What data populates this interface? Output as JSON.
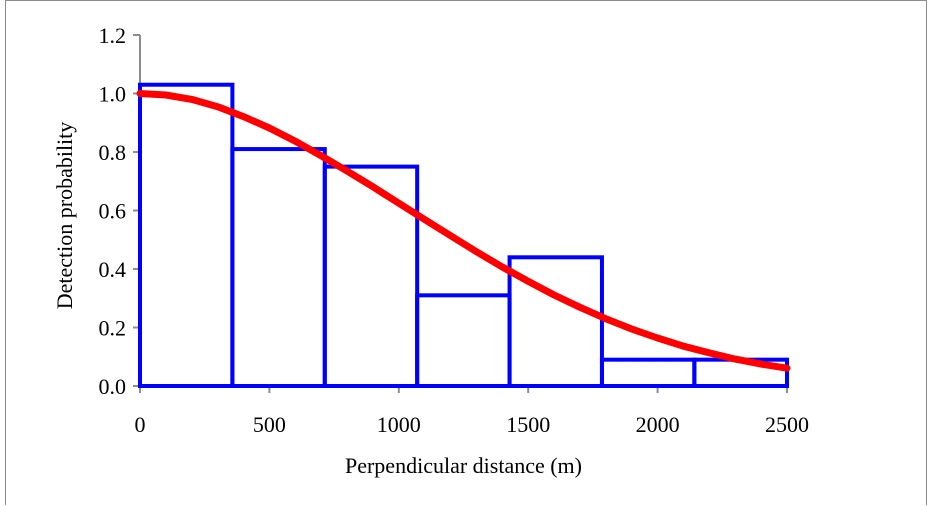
{
  "chart_data": {
    "type": "bar",
    "title": "",
    "xlabel": "Perpendicular distance  (m)",
    "ylabel": "Detection probability",
    "xlim": [
      0,
      2500
    ],
    "ylim": [
      0,
      1.2
    ],
    "x_ticks": [
      0,
      500,
      1000,
      1500,
      2000,
      2500
    ],
    "x_tick_labels": [
      "0",
      "500",
      "1000",
      "1500",
      "2000",
      "2500"
    ],
    "y_ticks": [
      0,
      0.2,
      0.4,
      0.6,
      0.8,
      1.0,
      1.2
    ],
    "y_tick_labels": [
      "0.0",
      "0.2",
      "0.4",
      "0.6",
      "0.8",
      "1.0",
      "1.2"
    ],
    "grid": false,
    "series": [
      {
        "type": "histogram",
        "color": "#0000ff",
        "bin_edges": [
          0,
          357,
          714,
          1071,
          1428,
          1785,
          2142,
          2500
        ],
        "values": [
          1.03,
          0.81,
          0.75,
          0.31,
          0.44,
          0.09,
          0.09
        ]
      },
      {
        "type": "line",
        "color": "#ff0000",
        "x": [
          0,
          100,
          200,
          300,
          400,
          500,
          600,
          700,
          800,
          900,
          1000,
          1100,
          1200,
          1300,
          1400,
          1500,
          1600,
          1700,
          1800,
          1900,
          2000,
          2100,
          2200,
          2300,
          2400,
          2500
        ],
        "y": [
          1.0,
          0.995,
          0.98,
          0.955,
          0.921,
          0.882,
          0.837,
          0.787,
          0.735,
          0.681,
          0.625,
          0.569,
          0.514,
          0.459,
          0.407,
          0.358,
          0.311,
          0.269,
          0.23,
          0.195,
          0.164,
          0.136,
          0.113,
          0.092,
          0.075,
          0.061
        ]
      }
    ]
  }
}
